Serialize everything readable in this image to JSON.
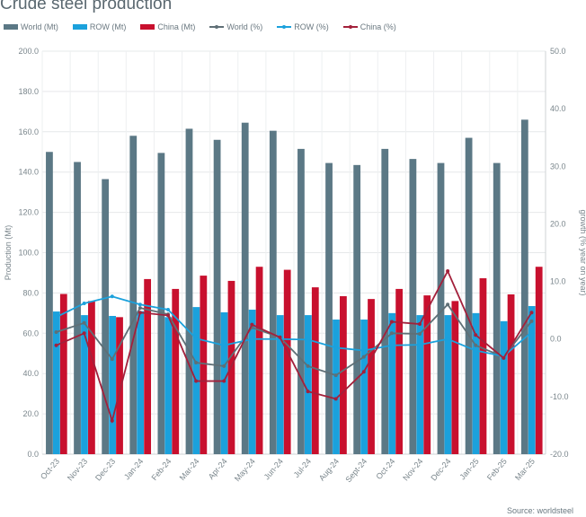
{
  "chart_data": {
    "type": "bar",
    "title": "Crude steel production",
    "ylabel": "Production (Mt)",
    "y2label": "growth (% year on year)",
    "ylim": [
      0,
      200
    ],
    "y2lim": [
      -20,
      50
    ],
    "yticks": [
      "0.0",
      "20.0",
      "40.0",
      "60.0",
      "80.0",
      "100.0",
      "120.0",
      "140.0",
      "160.0",
      "180.0",
      "200.0"
    ],
    "y2ticks": [
      "-20.0",
      "-10.0",
      "0.0",
      "10.0",
      "20.0",
      "30.0",
      "40.0",
      "50.0"
    ],
    "grid": true,
    "legend": "top",
    "categories": [
      "Oct-23",
      "Nov-23",
      "Dec-23",
      "Jan-24",
      "Feb-24",
      "Mar-24",
      "Apr-24",
      "May-24",
      "Jun-24",
      "Jul-24",
      "Aug-24",
      "Sept-24",
      "Oct-24",
      "Nov-24",
      "Dec-24",
      "Jan-25",
      "Feb-25",
      "Mar-25"
    ],
    "bar_series": [
      {
        "name": "World (Mt)",
        "color": "#5b7885",
        "values": [
          150,
          145,
          136.5,
          158,
          149.5,
          161.5,
          156,
          164.5,
          160.5,
          151.5,
          144.5,
          143.5,
          151.5,
          146.5,
          144.5,
          157,
          144.5,
          166
        ]
      },
      {
        "name": "ROW (Mt)",
        "color": "#1ba1dc",
        "values": [
          70.8,
          69,
          68.6,
          71,
          68,
          73,
          70.4,
          71.7,
          69,
          69,
          66.8,
          66.8,
          70,
          69,
          69,
          70,
          66,
          73.5
        ]
      },
      {
        "name": "China (Mt)",
        "color": "#c8102e",
        "values": [
          79.5,
          76,
          68,
          86.9,
          82,
          88.6,
          86,
          93,
          91.5,
          82.8,
          78.4,
          77,
          82,
          78.8,
          76,
          87.3,
          79.3,
          93
        ]
      }
    ],
    "line_series": [
      {
        "name": "World (%)",
        "color": "#5f6f76",
        "values": [
          1.2,
          2.8,
          -3.5,
          5.4,
          4.3,
          -4.1,
          -4.7,
          2.0,
          0.3,
          -4.7,
          -6.3,
          -3.1,
          1.0,
          0.9,
          6.0,
          -1.1,
          -3.1,
          3.1
        ]
      },
      {
        "name": "ROW (%)",
        "color": "#1ba1dc",
        "values": [
          3.8,
          6.2,
          7.4,
          6.0,
          5.1,
          0.1,
          -1.1,
          0,
          0,
          -0.1,
          -1.5,
          -2,
          -1.1,
          -1,
          0,
          -2,
          -3,
          1.2
        ]
      },
      {
        "name": "China (%)",
        "color": "#a3203b",
        "values": [
          -1.1,
          1.0,
          -14.2,
          4.6,
          4.1,
          -7.3,
          -7.3,
          2.5,
          0.3,
          -9.1,
          -10.4,
          -5.7,
          3.0,
          2.6,
          11.8,
          0.7,
          -3.3,
          4.6
        ]
      }
    ],
    "source": "Source: worldsteel"
  }
}
